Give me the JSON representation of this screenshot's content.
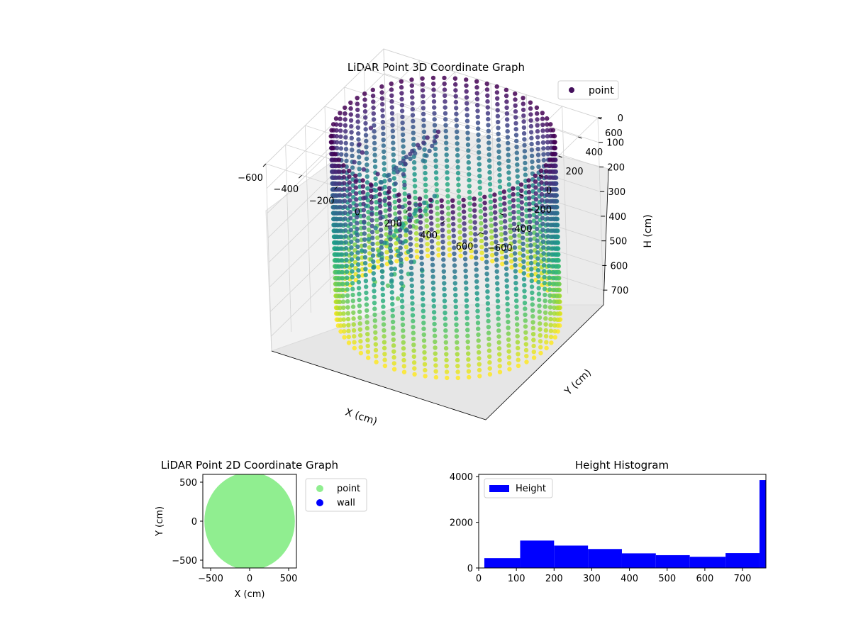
{
  "chart_data": [
    {
      "type": "scatter",
      "title": "LiDAR Point 3D Coordinate Graph",
      "xlabel": "X (cm)",
      "ylabel": "Y (cm)",
      "zlabel": "H (cm)",
      "legend": {
        "entries": [
          "point"
        ],
        "placement": "top-right"
      },
      "x_ticks": [
        "−600",
        "−400",
        "−200",
        "0",
        "200",
        "400",
        "600"
      ],
      "y_ticks": [
        "−600",
        "−400",
        "−200",
        "0",
        "200",
        "400",
        "600"
      ],
      "z_ticks": [
        "0",
        "100",
        "200",
        "300",
        "400",
        "500",
        "600",
        "700"
      ],
      "xlim": [
        -600,
        600
      ],
      "ylim": [
        -600,
        600
      ],
      "zlim": [
        0,
        760
      ],
      "z_inverted": true,
      "colormap": "viridis",
      "cylinder_radius": 550,
      "cylinder_height": 720
    },
    {
      "type": "scatter",
      "title": "LiDAR Point 2D Coordinate Graph",
      "xlabel": "X (cm)",
      "ylabel": "Y (cm)",
      "x_ticks": [
        "−500",
        "0",
        "500"
      ],
      "y_ticks": [
        "500",
        "0",
        "−500"
      ],
      "xlim": [
        -600,
        600
      ],
      "ylim": [
        -600,
        600
      ],
      "legend": {
        "placement": "outside-right"
      },
      "series": [
        {
          "name": "point",
          "color": "#90ee90",
          "shape": "disk",
          "radius": 580
        },
        {
          "name": "wall",
          "color": "#0000ff",
          "values": []
        }
      ]
    },
    {
      "type": "bar",
      "title": "Height Histogram",
      "legend": {
        "entries": [
          "Height"
        ],
        "placement": "top-left"
      },
      "color": "#0000ff",
      "x_ticks": [
        "0",
        "100",
        "200",
        "300",
        "400",
        "500",
        "600",
        "700"
      ],
      "y_ticks": [
        "0",
        "2000",
        "4000"
      ],
      "xlim": [
        0,
        762
      ],
      "ylim": [
        0,
        4100
      ],
      "bins": [
        {
          "x0": 15,
          "x1": 110,
          "value": 430
        },
        {
          "x0": 110,
          "x1": 200,
          "value": 1200
        },
        {
          "x0": 200,
          "x1": 290,
          "value": 980
        },
        {
          "x0": 290,
          "x1": 380,
          "value": 830
        },
        {
          "x0": 380,
          "x1": 470,
          "value": 640
        },
        {
          "x0": 470,
          "x1": 560,
          "value": 560
        },
        {
          "x0": 560,
          "x1": 655,
          "value": 490
        },
        {
          "x0": 655,
          "x1": 745,
          "value": 650
        },
        {
          "x0": 745,
          "x1": 762,
          "value": 3850
        }
      ]
    }
  ]
}
